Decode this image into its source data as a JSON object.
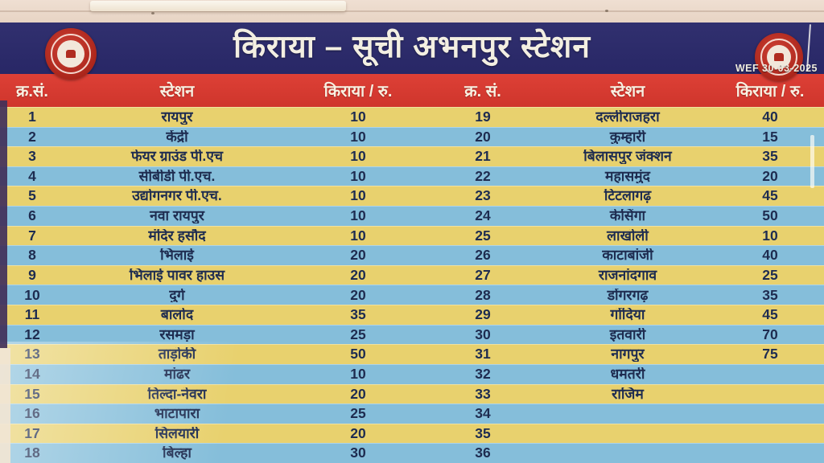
{
  "board": {
    "title": "किराया – सूची अभनपुर स्टेशन",
    "effective_date": "WEF 30-03-2025",
    "logo": "indian-railways-emblem"
  },
  "colors": {
    "board_blue": "#2b2a68",
    "header_red": "#d63a30",
    "row_yellow": "#e8d16e",
    "row_blue": "#85beda",
    "row_text": "#1e2c50",
    "wall": "#e9d7c8",
    "logo_red": "#b02c20"
  },
  "table": {
    "headers": {
      "sn_left": "क्र.सं.",
      "station_left": "स्टेशन",
      "fare_left": "किराया / रु.",
      "sn_right": "क्र. सं.",
      "station_right": "स्टेशन",
      "fare_right": "किराया / रु."
    },
    "rows": [
      {
        "sn_l": "1",
        "station_l": "रायपुर",
        "fare_l": "10",
        "sn_r": "19",
        "station_r": "दल्लीराजहरा",
        "fare_r": "40"
      },
      {
        "sn_l": "2",
        "station_l": "केंद्री",
        "fare_l": "10",
        "sn_r": "20",
        "station_r": "कुम्हारी",
        "fare_r": "15"
      },
      {
        "sn_l": "3",
        "station_l": "फेयर ग्राउंड पी.एच",
        "fare_l": "10",
        "sn_r": "21",
        "station_r": "बिलासपुर जंक्शन",
        "fare_r": "35"
      },
      {
        "sn_l": "4",
        "station_l": "सीबीडी पी.एच.",
        "fare_l": "10",
        "sn_r": "22",
        "station_r": "महासमुंद",
        "fare_r": "20"
      },
      {
        "sn_l": "5",
        "station_l": "उद्योगनगर पी.एच.",
        "fare_l": "10",
        "sn_r": "23",
        "station_r": "टिटलागढ़",
        "fare_r": "45"
      },
      {
        "sn_l": "6",
        "station_l": "नवा रायपुर",
        "fare_l": "10",
        "sn_r": "24",
        "station_r": "केसिंगा",
        "fare_r": "50"
      },
      {
        "sn_l": "7",
        "station_l": "मंदिर हसौद",
        "fare_l": "10",
        "sn_r": "25",
        "station_r": "लाखोली",
        "fare_r": "10"
      },
      {
        "sn_l": "8",
        "station_l": "भिलाई",
        "fare_l": "20",
        "sn_r": "26",
        "station_r": "काटाबांजी",
        "fare_r": "40"
      },
      {
        "sn_l": "9",
        "station_l": "भिलाई पावर हाउस",
        "fare_l": "20",
        "sn_r": "27",
        "station_r": "राजनांदगाव",
        "fare_r": "25"
      },
      {
        "sn_l": "10",
        "station_l": "दुर्ग",
        "fare_l": "20",
        "sn_r": "28",
        "station_r": "डोंगरगढ़",
        "fare_r": "35"
      },
      {
        "sn_l": "11",
        "station_l": "बालोद",
        "fare_l": "35",
        "sn_r": "29",
        "station_r": "गोंदिया",
        "fare_r": "45"
      },
      {
        "sn_l": "12",
        "station_l": "रसमड़ा",
        "fare_l": "25",
        "sn_r": "30",
        "station_r": "इतवारी",
        "fare_r": "70"
      },
      {
        "sn_l": "13",
        "station_l": "ताड़ोकी",
        "fare_l": "50",
        "sn_r": "31",
        "station_r": "नागपुर",
        "fare_r": "75"
      },
      {
        "sn_l": "14",
        "station_l": "मांढर",
        "fare_l": "10",
        "sn_r": "32",
        "station_r": "धमतरी",
        "fare_r": ""
      },
      {
        "sn_l": "15",
        "station_l": "तिल्दा-नेवरा",
        "fare_l": "20",
        "sn_r": "33",
        "station_r": "राजिम",
        "fare_r": ""
      },
      {
        "sn_l": "16",
        "station_l": "भाटापारा",
        "fare_l": "25",
        "sn_r": "34",
        "station_r": "",
        "fare_r": ""
      },
      {
        "sn_l": "17",
        "station_l": "सिलयारी",
        "fare_l": "20",
        "sn_r": "35",
        "station_r": "",
        "fare_r": ""
      },
      {
        "sn_l": "18",
        "station_l": "बिल्हा",
        "fare_l": "30",
        "sn_r": "36",
        "station_r": "",
        "fare_r": ""
      }
    ]
  }
}
